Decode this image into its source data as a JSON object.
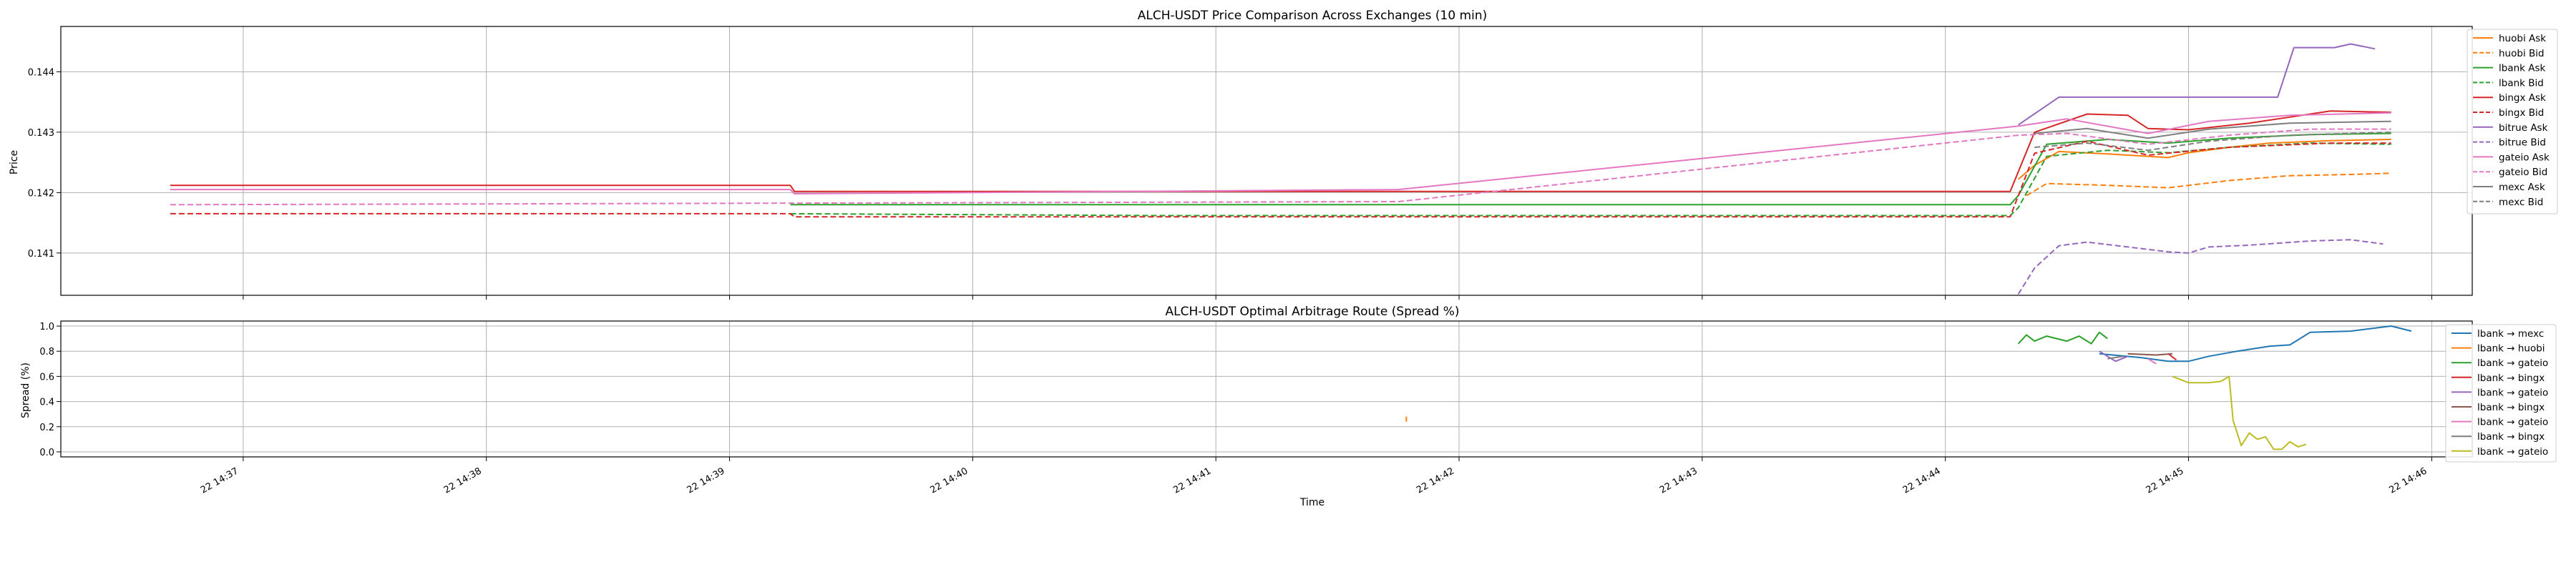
{
  "chart_data": [
    {
      "type": "line",
      "title": "ALCH-USDT Price Comparison Across Exchanges (10 min)",
      "xlabel": "",
      "ylabel": "Price",
      "xlim": [
        "22 14:36:15",
        "22 14:46:10"
      ],
      "ylim": [
        0.1403,
        0.14475
      ],
      "yticks": [
        "0.141",
        "0.142",
        "0.143",
        "0.144"
      ],
      "grid": true,
      "legend_position": "right",
      "series": [
        {
          "name": "huobi Ask",
          "color": "#ff7f0e",
          "dash": "solid",
          "points": [
            [
              "14:44:18",
              0.14222
            ],
            [
              "14:44:22",
              0.14245
            ],
            [
              "14:44:28",
              0.14268
            ],
            [
              "14:44:40",
              0.14264
            ],
            [
              "14:44:55",
              0.14258
            ],
            [
              "14:45:00",
              0.14266
            ],
            [
              "14:45:10",
              0.14275
            ],
            [
              "14:45:20",
              0.14282
            ],
            [
              "14:45:35",
              0.14286
            ],
            [
              "14:45:50",
              0.14288
            ]
          ]
        },
        {
          "name": "huobi Bid",
          "color": "#ff7f0e",
          "dash": "dashed",
          "points": [
            [
              "14:44:20",
              0.14195
            ],
            [
              "14:44:25",
              0.14215
            ],
            [
              "14:44:40",
              0.14212
            ],
            [
              "14:44:55",
              0.14208
            ],
            [
              "14:45:10",
              0.1422
            ],
            [
              "14:45:25",
              0.14228
            ],
            [
              "14:45:40",
              0.1423
            ],
            [
              "14:45:50",
              0.14232
            ]
          ]
        },
        {
          "name": "lbank Ask",
          "color": "#2ca02c",
          "dash": "solid",
          "points": [
            [
              "14:39:15",
              0.1418
            ],
            [
              "14:40:45",
              0.1418
            ],
            [
              "14:44:16",
              0.1418
            ],
            [
              "14:44:18",
              0.14195
            ],
            [
              "14:44:25",
              0.1428
            ],
            [
              "14:44:40",
              0.14288
            ],
            [
              "14:44:55",
              0.14282
            ],
            [
              "14:45:10",
              0.1429
            ],
            [
              "14:45:30",
              0.14296
            ],
            [
              "14:45:50",
              0.14298
            ]
          ]
        },
        {
          "name": "lbank Bid",
          "color": "#2ca02c",
          "dash": "dashed",
          "points": [
            [
              "14:39:15",
              0.14165
            ],
            [
              "14:40:45",
              0.14162
            ],
            [
              "14:44:16",
              0.14162
            ],
            [
              "14:44:18",
              0.14175
            ],
            [
              "14:44:25",
              0.1426
            ],
            [
              "14:44:40",
              0.1427
            ],
            [
              "14:44:55",
              0.14266
            ],
            [
              "14:45:10",
              0.14275
            ],
            [
              "14:45:30",
              0.14282
            ],
            [
              "14:45:50",
              0.1428
            ]
          ]
        },
        {
          "name": "bingx Ask",
          "color": "#d62728",
          "dash": "solid",
          "points": [
            [
              "14:36:42",
              0.14212
            ],
            [
              "14:39:15",
              0.14212
            ],
            [
              "14:39:16",
              0.14202
            ],
            [
              "14:44:16",
              0.14202
            ],
            [
              "14:44:22",
              0.143
            ],
            [
              "14:44:35",
              0.1433
            ],
            [
              "14:44:45",
              0.14328
            ],
            [
              "14:44:50",
              0.14306
            ],
            [
              "14:45:00",
              0.14304
            ],
            [
              "14:45:15",
              0.14315
            ],
            [
              "14:45:35",
              0.14335
            ],
            [
              "14:45:50",
              0.14333
            ]
          ]
        },
        {
          "name": "bingx Bid",
          "color": "#d62728",
          "dash": "dashed",
          "points": [
            [
              "14:36:42",
              0.14165
            ],
            [
              "14:39:15",
              0.14165
            ],
            [
              "14:39:16",
              0.1416
            ],
            [
              "14:44:16",
              0.1416
            ],
            [
              "14:44:22",
              0.14265
            ],
            [
              "14:44:35",
              0.14285
            ],
            [
              "14:44:50",
              0.14262
            ],
            [
              "14:45:10",
              0.14275
            ],
            [
              "14:45:35",
              0.14282
            ],
            [
              "14:45:50",
              0.14282
            ]
          ]
        },
        {
          "name": "bitrue Ask",
          "color": "#9467bd",
          "dash": "solid",
          "points": [
            [
              "14:44:18",
              0.14312
            ],
            [
              "14:44:28",
              0.14358
            ],
            [
              "14:45:22",
              0.14358
            ],
            [
              "14:45:26",
              0.1444
            ],
            [
              "14:45:36",
              0.1444
            ],
            [
              "14:45:40",
              0.14446
            ],
            [
              "14:45:46",
              0.14438
            ]
          ]
        },
        {
          "name": "bitrue Bid",
          "color": "#9467bd",
          "dash": "dashed",
          "points": [
            [
              "14:44:18",
              0.14032
            ],
            [
              "14:44:22",
              0.14075
            ],
            [
              "14:44:28",
              0.14112
            ],
            [
              "14:44:35",
              0.14118
            ],
            [
              "14:44:45",
              0.1411
            ],
            [
              "14:44:55",
              0.14102
            ],
            [
              "14:45:00",
              0.141
            ],
            [
              "14:45:05",
              0.1411
            ],
            [
              "14:45:15",
              0.14113
            ],
            [
              "14:45:30",
              0.1412
            ],
            [
              "14:45:40",
              0.14122
            ],
            [
              "14:45:48",
              0.14115
            ]
          ]
        },
        {
          "name": "gateio Ask",
          "color": "#e377c2",
          "dash": "solid",
          "points": [
            [
              "14:36:42",
              0.14205
            ],
            [
              "14:39:15",
              0.14205
            ],
            [
              "14:39:16",
              0.14198
            ],
            [
              "14:41:45",
              0.14205
            ],
            [
              "14:44:18",
              0.1431
            ],
            [
              "14:44:30",
              0.14322
            ],
            [
              "14:44:50",
              0.14298
            ],
            [
              "14:45:05",
              0.14318
            ],
            [
              "14:45:25",
              0.14328
            ],
            [
              "14:45:50",
              0.14332
            ]
          ]
        },
        {
          "name": "gateio Bid",
          "color": "#e377c2",
          "dash": "dashed",
          "points": [
            [
              "14:36:42",
              0.1418
            ],
            [
              "14:41:45",
              0.14185
            ],
            [
              "14:44:18",
              0.14295
            ],
            [
              "14:44:30",
              0.14298
            ],
            [
              "14:44:50",
              0.1428
            ],
            [
              "14:45:10",
              0.14295
            ],
            [
              "14:45:30",
              0.14305
            ],
            [
              "14:45:50",
              0.14305
            ]
          ]
        },
        {
          "name": "mexc Ask",
          "color": "#7f7f7f",
          "dash": "solid",
          "points": [
            [
              "14:44:22",
              0.14298
            ],
            [
              "14:44:35",
              0.14306
            ],
            [
              "14:44:50",
              0.1429
            ],
            [
              "14:45:05",
              0.14305
            ],
            [
              "14:45:25",
              0.14315
            ],
            [
              "14:45:50",
              0.14318
            ]
          ]
        },
        {
          "name": "mexc Bid",
          "color": "#7f7f7f",
          "dash": "dashed",
          "points": [
            [
              "14:44:22",
              0.14275
            ],
            [
              "14:44:35",
              0.14282
            ],
            [
              "14:44:50",
              0.1427
            ],
            [
              "14:45:05",
              0.14285
            ],
            [
              "14:45:25",
              0.14295
            ],
            [
              "14:45:50",
              0.143
            ]
          ]
        }
      ]
    },
    {
      "type": "line",
      "title": "ALCH-USDT Optimal Arbitrage Route (Spread %)",
      "xlabel": "Time",
      "ylabel": "Spread (%)",
      "xlim": [
        "22 14:36:15",
        "22 14:46:10"
      ],
      "ylim": [
        -0.04,
        1.04
      ],
      "yticks": [
        "0.0",
        "0.2",
        "0.4",
        "0.6",
        "0.8",
        "1.0"
      ],
      "xticks": [
        "22 14:37",
        "22 14:38",
        "22 14:39",
        "22 14:40",
        "22 14:41",
        "22 14:42",
        "22 14:43",
        "22 14:44",
        "22 14:45",
        "22 14:46"
      ],
      "grid": true,
      "legend_position": "right",
      "series": [
        {
          "name": "lbank → mexc",
          "color": "#1f77b4",
          "points": [
            [
              "14:44:38",
              0.78
            ],
            [
              "14:44:48",
              0.75
            ],
            [
              "14:44:55",
              0.72
            ],
            [
              "14:45:00",
              0.72
            ],
            [
              "14:45:05",
              0.76
            ],
            [
              "14:45:12",
              0.8
            ],
            [
              "14:45:20",
              0.84
            ],
            [
              "14:45:25",
              0.85
            ],
            [
              "14:45:30",
              0.95
            ],
            [
              "14:45:40",
              0.96
            ],
            [
              "14:45:50",
              1.0
            ],
            [
              "14:45:55",
              0.96
            ]
          ]
        },
        {
          "name": "lbank → huobi",
          "color": "#ff7f0e",
          "points": [
            [
              "14:41:47",
              0.24
            ],
            [
              "14:41:47",
              0.28
            ]
          ]
        },
        {
          "name": "lbank → gateio",
          "color": "#2ca02c",
          "points": [
            [
              "14:44:18",
              0.86
            ],
            [
              "14:44:20",
              0.93
            ],
            [
              "14:44:22",
              0.88
            ],
            [
              "14:44:25",
              0.92
            ],
            [
              "14:44:30",
              0.88
            ],
            [
              "14:44:33",
              0.92
            ],
            [
              "14:44:36",
              0.86
            ],
            [
              "14:44:38",
              0.95
            ],
            [
              "14:44:40",
              0.9
            ]
          ]
        },
        {
          "name": "lbank → bingx",
          "color": "#d62728",
          "points": [
            [
              "14:44:55",
              0.78
            ],
            [
              "14:44:57",
              0.73
            ]
          ]
        },
        {
          "name": "lbank → gateio",
          "color": "#9467bd",
          "points": [
            [
              "14:44:38",
              0.8
            ],
            [
              "14:44:42",
              0.72
            ],
            [
              "14:44:45",
              0.76
            ]
          ]
        },
        {
          "name": "lbank → bingx",
          "color": "#8c564b",
          "points": [
            [
              "14:44:45",
              0.78
            ],
            [
              "14:44:52",
              0.77
            ],
            [
              "14:44:56",
              0.78
            ]
          ]
        },
        {
          "name": "lbank → gateio",
          "color": "#e377c2",
          "points": [
            [
              "14:44:50",
              0.74
            ],
            [
              "14:44:52",
              0.7
            ]
          ]
        },
        {
          "name": "lbank → bingx",
          "color": "#7f7f7f",
          "points": [
            [
              "14:44:40",
              0.74
            ],
            [
              "14:44:44",
              0.76
            ]
          ]
        },
        {
          "name": "lbank → gateio",
          "color": "#bcbd22",
          "points": [
            [
              "14:44:56",
              0.6
            ],
            [
              "14:45:00",
              0.55
            ],
            [
              "14:45:05",
              0.55
            ],
            [
              "14:45:08",
              0.56
            ],
            [
              "14:45:10",
              0.6
            ],
            [
              "14:45:11",
              0.25
            ],
            [
              "14:45:13",
              0.05
            ],
            [
              "14:45:15",
              0.15
            ],
            [
              "14:45:17",
              0.1
            ],
            [
              "14:45:19",
              0.12
            ],
            [
              "14:45:21",
              0.02
            ],
            [
              "14:45:23",
              0.02
            ],
            [
              "14:45:25",
              0.08
            ],
            [
              "14:45:27",
              0.04
            ],
            [
              "14:45:29",
              0.06
            ]
          ]
        }
      ]
    }
  ]
}
